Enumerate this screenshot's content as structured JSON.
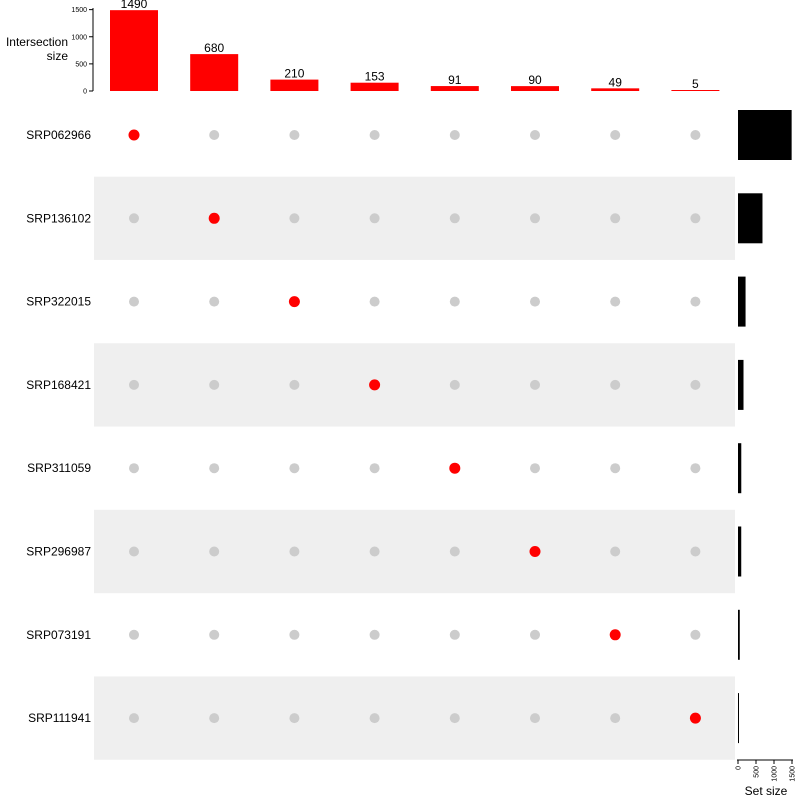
{
  "chart_data": {
    "type": "upset",
    "intersection_axis": {
      "title_line1": "Intersection",
      "title_line2": "size",
      "ticks": [
        "0",
        "500",
        "1000",
        "1500"
      ],
      "ylim": [
        0,
        1500
      ]
    },
    "set_size_axis": {
      "title": "Set size",
      "ticks": [
        "0",
        "500",
        "1000",
        "1500"
      ],
      "xlim": [
        0,
        1500
      ]
    },
    "sets": [
      "SRP062966",
      "SRP136102",
      "SRP322015",
      "SRP168421",
      "SRP311059",
      "SRP296987",
      "SRP073191",
      "SRP111941"
    ],
    "set_sizes": [
      1490,
      680,
      210,
      153,
      91,
      90,
      49,
      5
    ],
    "intersections": [
      {
        "sets": [
          0
        ],
        "size": 1490,
        "label": "1490"
      },
      {
        "sets": [
          1
        ],
        "size": 680,
        "label": "680"
      },
      {
        "sets": [
          2
        ],
        "size": 210,
        "label": "210"
      },
      {
        "sets": [
          3
        ],
        "size": 153,
        "label": "153"
      },
      {
        "sets": [
          4
        ],
        "size": 91,
        "label": "91"
      },
      {
        "sets": [
          5
        ],
        "size": 90,
        "label": "90"
      },
      {
        "sets": [
          6
        ],
        "size": 49,
        "label": "49"
      },
      {
        "sets": [
          7
        ],
        "size": 5,
        "label": "5"
      }
    ],
    "colors": {
      "intersection_bar": "#ff0000",
      "active_dot": "#ff0000",
      "inactive_dot": "#cccccc",
      "set_bar": "#000000",
      "stripe": "#efefef"
    }
  }
}
